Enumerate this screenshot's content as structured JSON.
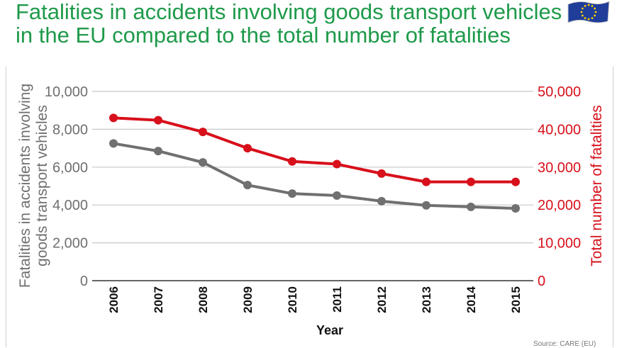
{
  "title_line1": "Fatalities in accidents involving goods transport vehicles",
  "title_line2": "in the EU compared to the total number of fatalities",
  "source_text": "Source: CARE (EU)",
  "colors": {
    "title": "#1e9a4a",
    "goods_series": "#707070",
    "total_series": "#d7101b",
    "left_axis_text": "#6f6f6f",
    "right_axis_text": "#d7101b",
    "grid": "#c8c8c8"
  },
  "chart_data": {
    "type": "line",
    "x": [
      "2006",
      "2007",
      "2008",
      "2009",
      "2010",
      "2011",
      "2012",
      "2013",
      "2014",
      "2015"
    ],
    "xlabel": "Year",
    "y_left": {
      "label_line1": "Fatalities in accidents involving",
      "label_line2": "goods transport vehicles",
      "lim": [
        0,
        10000
      ],
      "ticks": [
        "0",
        "2,000",
        "4,000",
        "6,000",
        "8,000",
        "10,000"
      ]
    },
    "y_right": {
      "label": "Total number of fatalities",
      "lim": [
        0,
        50000
      ],
      "ticks": [
        "0",
        "10,000",
        "20,000",
        "30,000",
        "40,000",
        "50,000"
      ]
    },
    "grid": true,
    "series": [
      {
        "axis": "left",
        "color": "#707070",
        "values": [
          7250,
          6850,
          6250,
          5050,
          4600,
          4500,
          4200,
          3980,
          3900,
          3820
        ]
      },
      {
        "axis": "right",
        "color": "#d7101b",
        "values": [
          43000,
          42400,
          39300,
          35000,
          31500,
          30800,
          28300,
          26100,
          26100,
          26100
        ]
      }
    ]
  }
}
